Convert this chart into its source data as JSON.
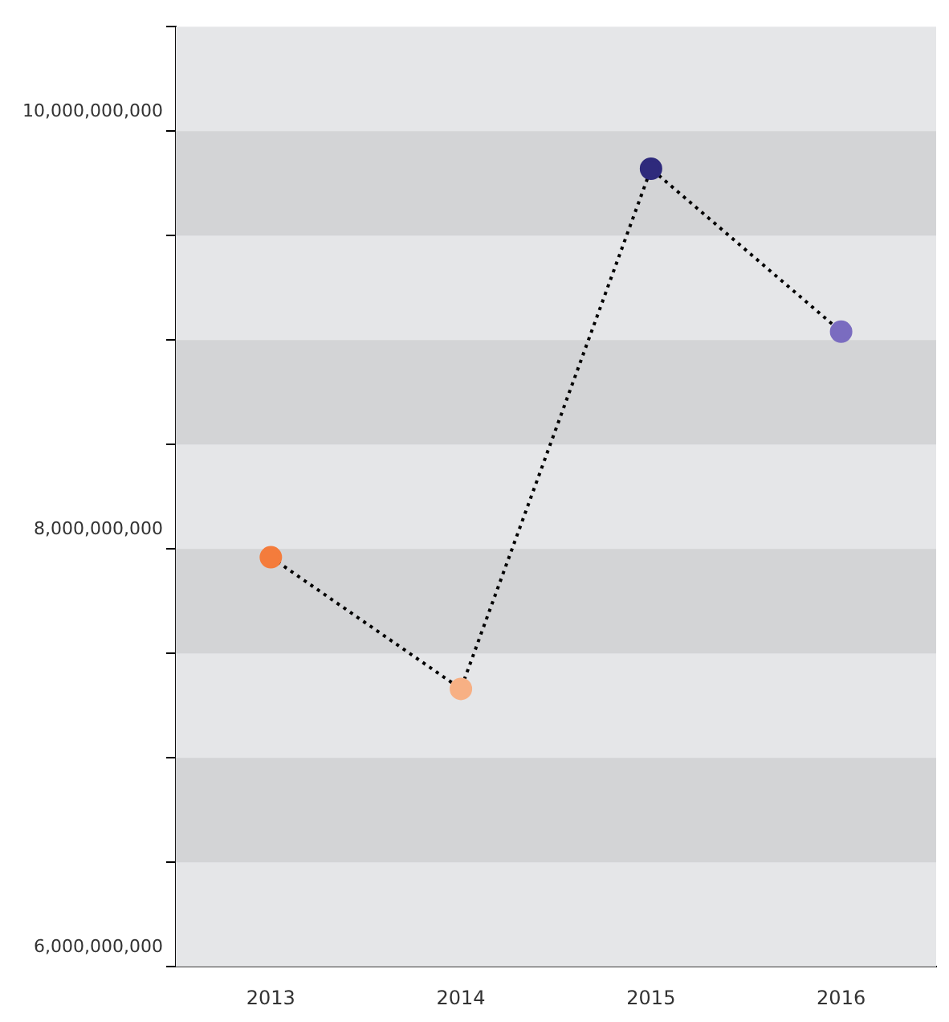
{
  "chart_data": {
    "type": "line",
    "categories": [
      "2013",
      "2014",
      "2015",
      "2016"
    ],
    "values": [
      7960000000,
      7330000000,
      9820000000,
      9040000000
    ],
    "colors": [
      "#f47c3c",
      "#f7b084",
      "#2e2a7c",
      "#7a6cc0"
    ],
    "color": "#000000",
    "line_style": "dotted",
    "marker": "circle",
    "ylim": [
      6000000000,
      10500000000
    ],
    "yticks": [
      {
        "value": 6000000000,
        "label": "6,000,000,000"
      },
      {
        "value": 6500000000,
        "label": null
      },
      {
        "value": 7000000000,
        "label": null
      },
      {
        "value": 7500000000,
        "label": null
      },
      {
        "value": 8000000000,
        "label": "8,000,000,000"
      },
      {
        "value": 8500000000,
        "label": null
      },
      {
        "value": 9000000000,
        "label": null
      },
      {
        "value": 9500000000,
        "label": null
      },
      {
        "value": 10000000000,
        "label": "10,000,000,000"
      },
      {
        "value": 10500000000,
        "label": null
      }
    ],
    "legend": false
  }
}
